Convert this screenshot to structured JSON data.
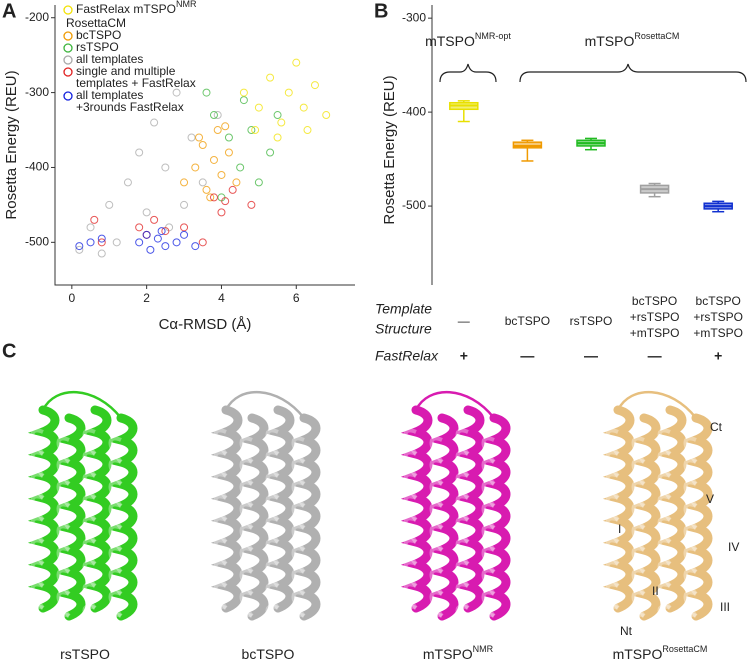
{
  "panels": [
    "A",
    "B",
    "C"
  ],
  "chart_data": [
    {
      "type": "scatter",
      "x_label": "Cα-RMSD (Å)",
      "y_label": "Rosetta Energy (REU)",
      "xlim": [
        -0.45,
        7.57
      ],
      "xticks": [
        0,
        2,
        4,
        6
      ],
      "ylim": [
        -557,
        -183
      ],
      "yticks": [
        -200,
        -300,
        -400,
        -500
      ],
      "legend_group": "RosettaCM",
      "series": [
        {
          "name": [
            "FastRelax mTSPO"
          ],
          "name_sup": "NMR",
          "color": "#f2e100",
          "x": [
            4.6,
            5.0,
            5.3,
            5.6,
            5.8,
            6.0,
            6.2,
            6.5,
            6.8,
            5.5,
            4.9,
            6.3
          ],
          "values": [
            -300,
            -320,
            -280,
            -340,
            -300,
            -260,
            -320,
            -290,
            -330,
            -360,
            -350,
            -350
          ]
        },
        {
          "name": [
            "bcTSPO"
          ],
          "color": "#f09a00",
          "x": [
            3.0,
            3.3,
            3.5,
            3.6,
            3.8,
            3.9,
            4.0,
            4.2,
            4.4,
            3.7,
            3.4,
            4.1
          ],
          "values": [
            -420,
            -400,
            -370,
            -430,
            -390,
            -350,
            -410,
            -380,
            -420,
            -440,
            -360,
            -345
          ]
        },
        {
          "name": [
            "rsTSPO"
          ],
          "color": "#3cb43c",
          "x": [
            3.8,
            4.2,
            4.5,
            4.8,
            5.0,
            5.3,
            4.0,
            3.6,
            5.5,
            4.6
          ],
          "values": [
            -330,
            -360,
            -400,
            -350,
            -420,
            -380,
            -440,
            -300,
            -330,
            -310
          ]
        },
        {
          "name": [
            "all templates"
          ],
          "color": "#a8a8a8",
          "x": [
            0.2,
            0.5,
            1.0,
            1.5,
            1.8,
            2.0,
            2.2,
            2.5,
            2.8,
            3.0,
            3.2,
            3.5,
            1.2,
            2.6,
            0.8,
            3.9
          ],
          "values": [
            -510,
            -480,
            -450,
            -420,
            -380,
            -460,
            -340,
            -400,
            -300,
            -450,
            -360,
            -420,
            -500,
            -480,
            -515,
            -330
          ]
        },
        {
          "name": [
            "single and multiple",
            "templates + FastRelax"
          ],
          "color": "#e02020",
          "x": [
            0.6,
            0.8,
            1.8,
            2.0,
            2.2,
            2.5,
            3.0,
            3.5,
            3.8,
            4.0,
            4.3,
            4.8,
            4.1
          ],
          "values": [
            -470,
            -500,
            -480,
            -490,
            -470,
            -485,
            -480,
            -500,
            -440,
            -460,
            -430,
            -450,
            -445
          ]
        },
        {
          "name": [
            "all templates",
            "+3rounds FastRelax"
          ],
          "color": "#1020e0",
          "x": [
            0.2,
            0.5,
            0.8,
            1.8,
            2.0,
            2.1,
            2.3,
            2.5,
            2.8,
            3.0,
            3.3,
            2.4
          ],
          "values": [
            -505,
            -500,
            -495,
            -500,
            -490,
            -510,
            -495,
            -505,
            -500,
            -490,
            -505,
            -485
          ]
        }
      ]
    },
    {
      "type": "box",
      "y_label": "Rosetta Energy (REU)",
      "ylim": [
        -584,
        -286
      ],
      "yticks": [
        -300,
        -400,
        -500
      ],
      "row_labels": [
        [
          "Template",
          "Structure"
        ],
        "FastRelax"
      ],
      "categories": [
        [
          "—"
        ],
        [
          "bcTSPO"
        ],
        [
          "rsTSPO"
        ],
        [
          "bcTSPO",
          "+rsTSPO",
          "+mTSPO"
        ],
        [
          "bcTSPO",
          "+rsTSPO",
          "+mTSPO"
        ]
      ],
      "fastrelax": [
        "+",
        "—",
        "—",
        "—",
        "+"
      ],
      "colors": [
        "#e8e000",
        "#f09a00",
        "#22bb22",
        "#a0a0a0",
        "#1030d0"
      ],
      "whislo": [
        -410,
        -452,
        -440,
        -490,
        -506
      ],
      "q1": [
        -397,
        -438,
        -436,
        -486,
        -503
      ],
      "median": [
        -393,
        -436,
        -433,
        -482,
        -500
      ],
      "q3": [
        -390,
        -432,
        -430,
        -478,
        -497
      ],
      "whishi": [
        -388,
        -430,
        -428,
        -476,
        -495
      ],
      "annotations": [
        {
          "text": "mTSPO",
          "sup": "NMR-opt"
        },
        {
          "text": "mTSPO",
          "sup": "RosettaCM"
        }
      ]
    }
  ],
  "structures": [
    {
      "name": "rsTSPO",
      "sup": null
    },
    {
      "name": "bcTSPO",
      "sup": null
    },
    {
      "name": "mTSPO",
      "sup": "NMR"
    },
    {
      "name": "mTSPO",
      "sup": "RosettaCM"
    }
  ],
  "helix_labels": [
    "Ct",
    "V",
    "I",
    "IV",
    "II",
    "III",
    "Nt"
  ]
}
